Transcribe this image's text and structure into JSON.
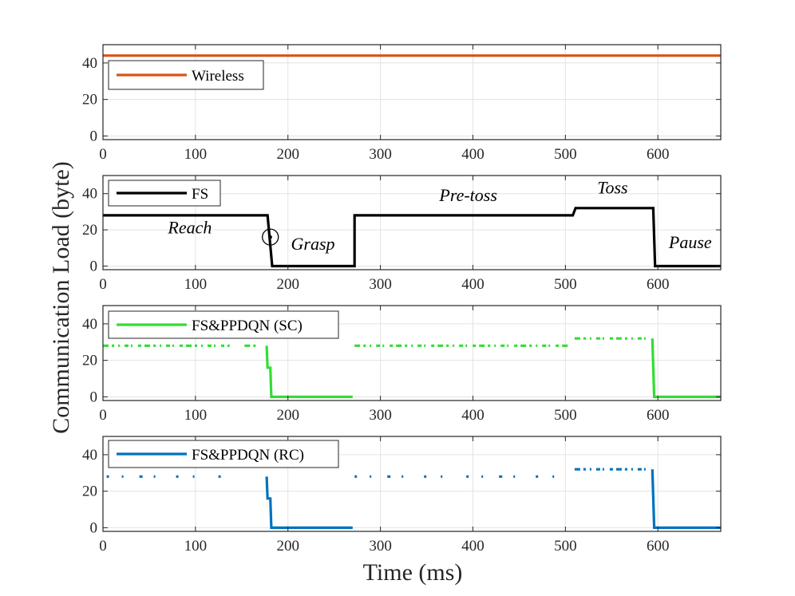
{
  "figure": {
    "xlabel": "Time (ms)",
    "ylabel": "Communication Load (byte)"
  },
  "chart_data": [
    {
      "type": "line",
      "series": [
        {
          "name": "Wireless",
          "color": "#d95319",
          "style": "solid",
          "x": [
            0,
            668
          ],
          "y": [
            44,
            44
          ]
        }
      ],
      "xlim": [
        0,
        668
      ],
      "ylim": [
        -2,
        50
      ],
      "xticks": [
        0,
        100,
        200,
        300,
        400,
        500,
        600
      ],
      "yticks": [
        0,
        20,
        40
      ],
      "grid": true,
      "legend": "top-left"
    },
    {
      "type": "line",
      "series": [
        {
          "name": "FS",
          "color": "#000000",
          "style": "solid",
          "x": [
            0,
            178,
            183,
            272,
            272,
            508,
            511,
            595,
            597,
            668
          ],
          "y": [
            28,
            28,
            0,
            0,
            28,
            28,
            32,
            32,
            0,
            0
          ]
        }
      ],
      "annotations": [
        {
          "text": "Reach",
          "x": 94,
          "y": 18
        },
        {
          "text": "Grasp",
          "x": 227,
          "y": 9
        },
        {
          "text": "Pre-toss",
          "x": 395,
          "y": 36
        },
        {
          "text": "Toss",
          "x": 551,
          "y": 40
        },
        {
          "text": "Pause",
          "x": 635,
          "y": 10
        }
      ],
      "marker": {
        "shape": "circle",
        "x": 181,
        "y": 16
      },
      "xlim": [
        0,
        668
      ],
      "ylim": [
        -2,
        50
      ],
      "xticks": [
        0,
        100,
        200,
        300,
        400,
        500,
        600
      ],
      "yticks": [
        0,
        20,
        40
      ],
      "grid": true,
      "legend": "top-left"
    },
    {
      "type": "line",
      "series": [
        {
          "name": "FS&PPDQN (SC)",
          "color": "#33dd33",
          "style": "solid",
          "segments": [
            {
              "x": [
                0,
                137
              ],
              "y": [
                28,
                28
              ],
              "style": "sparse-dash"
            },
            {
              "x": [
                153,
                166
              ],
              "y": [
                28,
                28
              ],
              "style": "sparse-dash"
            },
            {
              "x": [
                177,
                178,
                179,
                181,
                182,
                184,
                270
              ],
              "y": [
                28,
                16,
                16,
                16,
                0,
                0,
                0
              ],
              "style": "solid"
            },
            {
              "x": [
                272,
                505
              ],
              "y": [
                28,
                28
              ],
              "style": "sparse-dash"
            },
            {
              "x": [
                510,
                590
              ],
              "y": [
                32,
                32
              ],
              "style": "sparse-dash"
            },
            {
              "x": [
                594,
                596,
                668
              ],
              "y": [
                32,
                0,
                0
              ],
              "style": "solid"
            }
          ]
        }
      ],
      "xlim": [
        0,
        668
      ],
      "ylim": [
        -2,
        50
      ],
      "xticks": [
        0,
        100,
        200,
        300,
        400,
        500,
        600
      ],
      "yticks": [
        0,
        20,
        40
      ],
      "grid": true,
      "legend": "top-left"
    },
    {
      "type": "line",
      "series": [
        {
          "name": "FS&PPDQN (RC)",
          "color": "#0072bd",
          "style": "solid",
          "segments": [
            {
              "x": [
                4,
                136
              ],
              "y": [
                28,
                28
              ],
              "style": "very-sparse-dash"
            },
            {
              "x": [
                177,
                178,
                179,
                181,
                182,
                184,
                270
              ],
              "y": [
                28,
                16,
                16,
                16,
                0,
                0,
                0
              ],
              "style": "solid"
            },
            {
              "x": [
                272,
                490
              ],
              "y": [
                28,
                28
              ],
              "style": "very-sparse-dash"
            },
            {
              "x": [
                510,
                590
              ],
              "y": [
                32,
                32
              ],
              "style": "sparse-dash"
            },
            {
              "x": [
                594,
                596,
                668
              ],
              "y": [
                32,
                0,
                0
              ],
              "style": "solid"
            }
          ]
        }
      ],
      "xlim": [
        0,
        668
      ],
      "ylim": [
        -2,
        50
      ],
      "xticks": [
        0,
        100,
        200,
        300,
        400,
        500,
        600
      ],
      "yticks": [
        0,
        20,
        40
      ],
      "grid": true,
      "legend": "top-left"
    }
  ]
}
